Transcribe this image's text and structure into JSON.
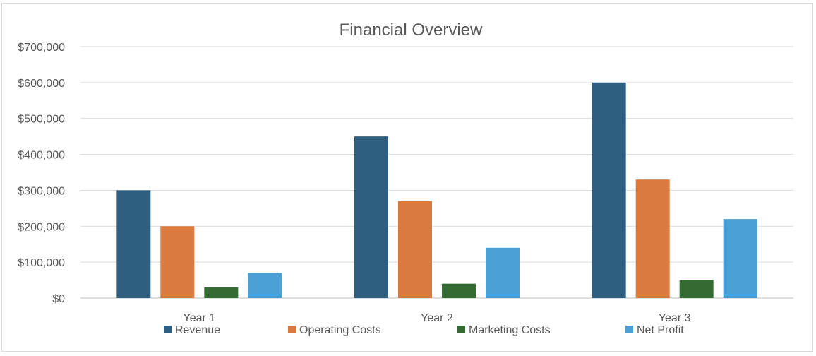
{
  "chart_data": {
    "type": "bar",
    "title": "Financial Overview",
    "xlabel": "",
    "ylabel": "",
    "categories": [
      "Year 1",
      "Year 2",
      "Year 3"
    ],
    "series": [
      {
        "name": "Revenue",
        "color": "#2e5f80",
        "values": [
          300000,
          450000,
          600000
        ]
      },
      {
        "name": "Operating Costs",
        "color": "#d97a40",
        "values": [
          200000,
          270000,
          330000
        ]
      },
      {
        "name": "Marketing Costs",
        "color": "#336b32",
        "values": [
          30000,
          40000,
          50000
        ]
      },
      {
        "name": "Net Profit",
        "color": "#4aa0d5",
        "values": [
          70000,
          140000,
          220000
        ]
      }
    ],
    "ylim": [
      0,
      700000
    ],
    "yticks": [
      "$0",
      "$100,000",
      "$200,000",
      "$300,000",
      "$400,000",
      "$500,000",
      "$600,000",
      "$700,000"
    ],
    "grid": true,
    "legend_position": "bottom"
  }
}
